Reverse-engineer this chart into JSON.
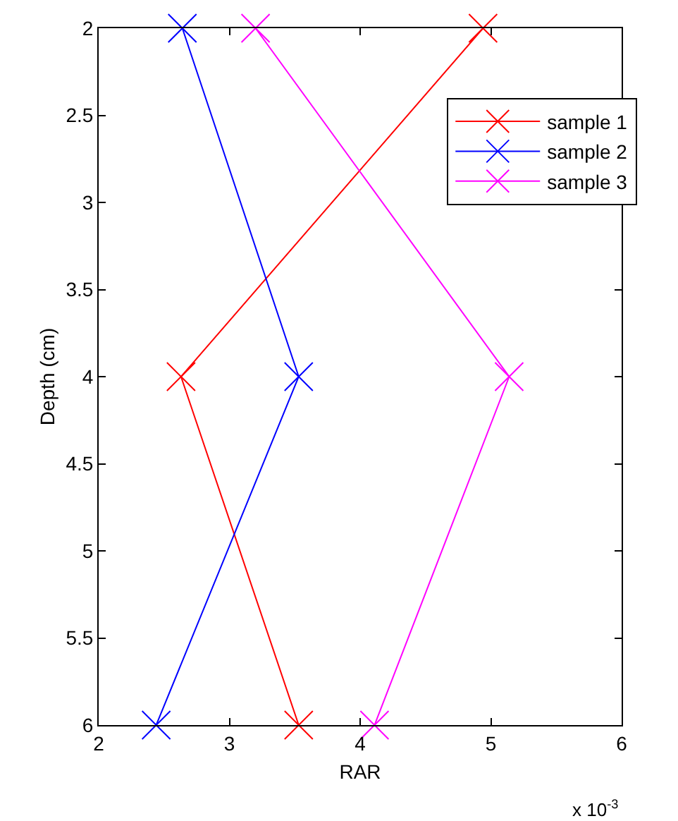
{
  "chart_data": {
    "type": "line",
    "xlabel": "RAR",
    "ylabel": "Depth (cm)",
    "series": [
      {
        "name": "sample 1",
        "color": "#ff0000",
        "x": [
          4.94,
          2.63,
          3.53
        ],
        "values": [
          2,
          4,
          6
        ]
      },
      {
        "name": "sample 2",
        "color": "#0000ff",
        "x": [
          2.64,
          3.53,
          2.44
        ],
        "values": [
          2,
          4,
          6
        ]
      },
      {
        "name": "sample 3",
        "color": "#ff00ff",
        "x": [
          3.2,
          5.14,
          4.11
        ],
        "values": [
          2,
          4,
          6
        ]
      }
    ],
    "xlim": [
      2,
      6
    ],
    "xticks": [
      2,
      3,
      4,
      5,
      6
    ],
    "ylim": [
      6,
      2
    ],
    "yticks": [
      2,
      2.5,
      3,
      3.5,
      4,
      4.5,
      5,
      5.5,
      6
    ],
    "annotations": [
      "x 10$^{-3}$"
    ],
    "legend": "top right",
    "marker": "cross",
    "line_style": "solid"
  }
}
